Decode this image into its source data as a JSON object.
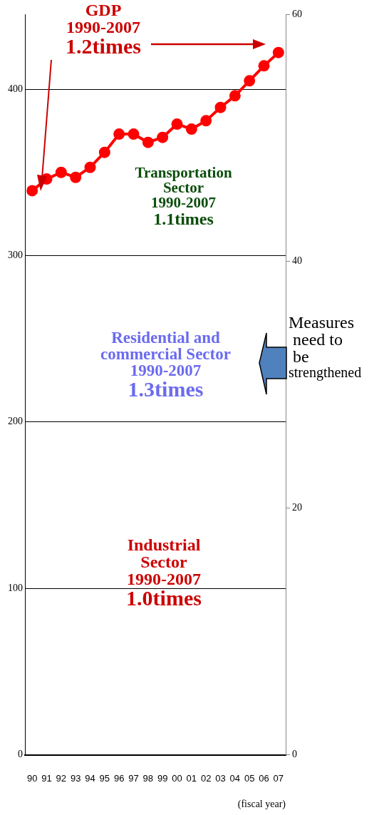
{
  "chart_data": {
    "type": "line",
    "xlabel": "(fiscal year)",
    "categories": [
      "90",
      "91",
      "92",
      "93",
      "94",
      "95",
      "96",
      "97",
      "98",
      "99",
      "00",
      "01",
      "02",
      "03",
      "04",
      "05",
      "06",
      "07"
    ],
    "series": [
      {
        "color": "#ff0000",
        "values": [
          339,
          346,
          350,
          347,
          353,
          362,
          373,
          373,
          368,
          371,
          379,
          376,
          381,
          389,
          396,
          405,
          414,
          422
        ]
      }
    ],
    "ylim": [
      0,
      445
    ],
    "yticks": [
      0,
      100,
      200,
      300,
      400
    ],
    "y2lim": [
      0,
      60
    ],
    "y2ticks": [
      0,
      20,
      40,
      60
    ],
    "grid": "y",
    "marker": "circle",
    "line_style": "solid",
    "legend": false,
    "annotations": [
      "GDP\n1990-2007\n1.2times",
      "Transportation\nSector\n1990-2007\n1.1times",
      "Residential and\ncommercial Sector\n1990-2007\n1.3times",
      "Industrial\nSector\n1990-2007\n1.0times",
      "Measures\n need to\n be\nstrengthened"
    ]
  }
}
